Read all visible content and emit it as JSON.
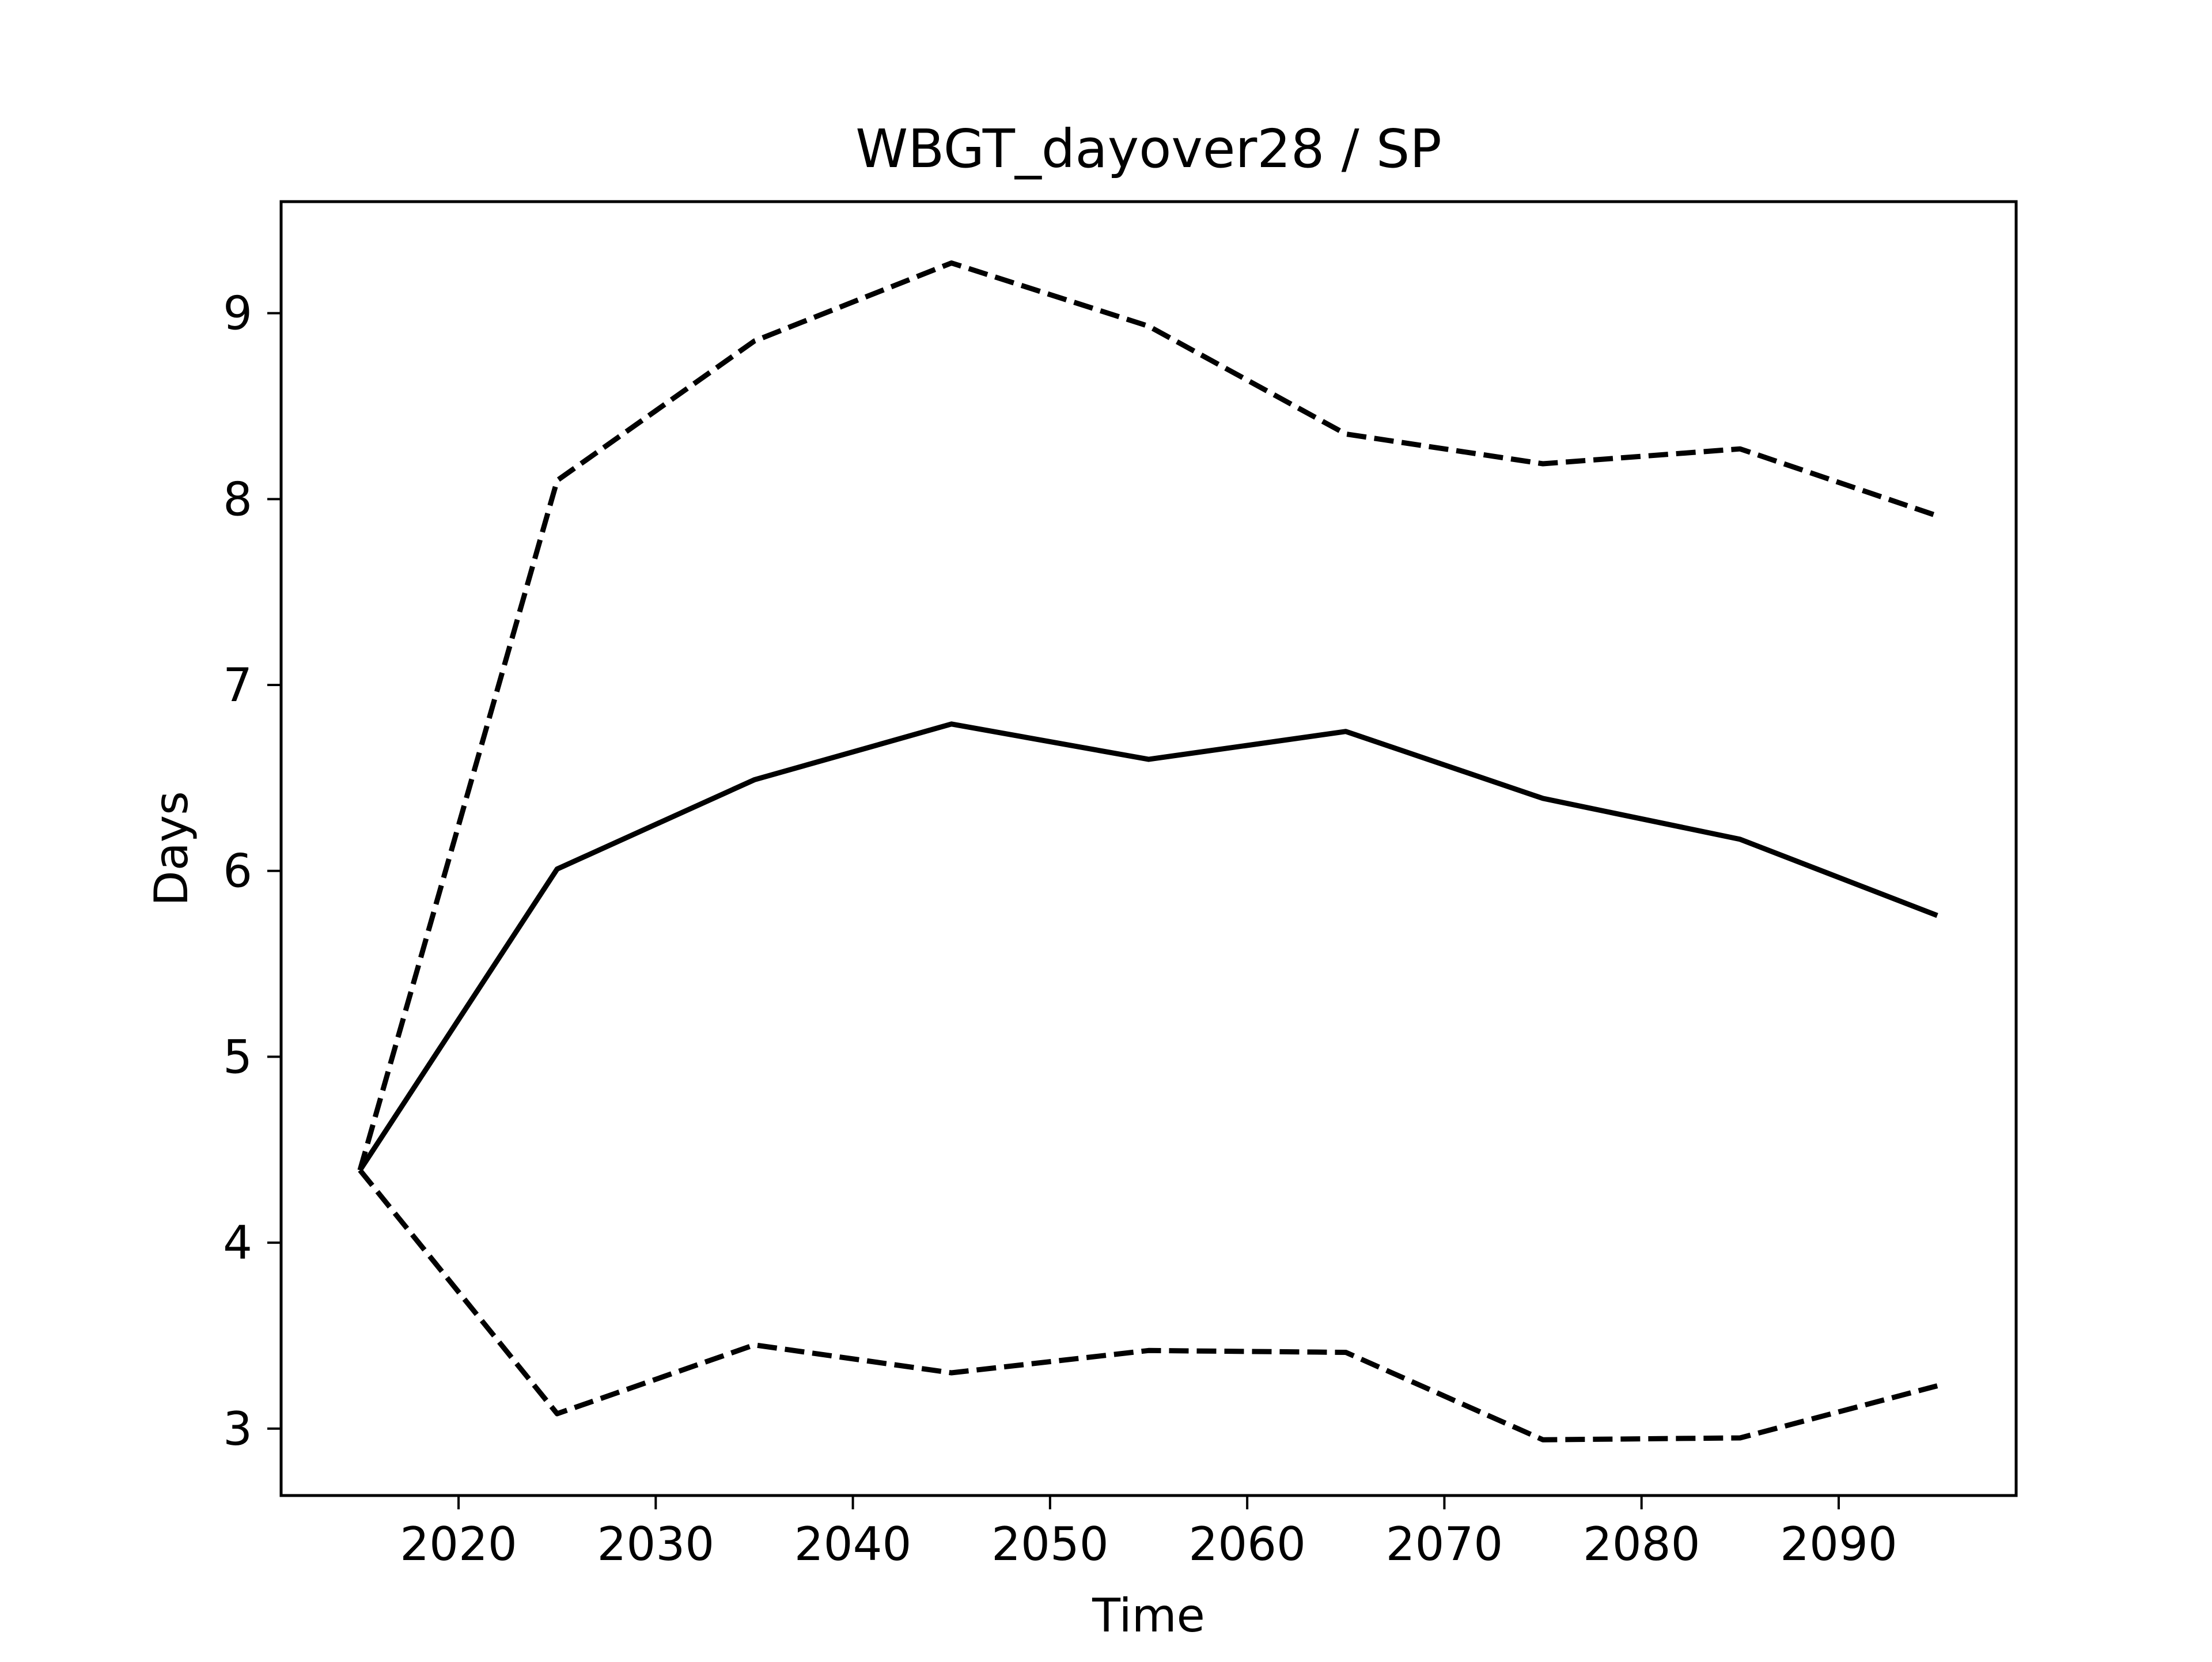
{
  "chart_data": {
    "type": "line",
    "title": "WBGT_dayover28 / SP",
    "xlabel": "Time",
    "ylabel": "Days",
    "xlim": [
      2011,
      2099
    ],
    "ylim": [
      2.64,
      9.6
    ],
    "xticks": [
      2020,
      2030,
      2040,
      2050,
      2060,
      2070,
      2080,
      2090
    ],
    "yticks": [
      3,
      4,
      5,
      6,
      7,
      8,
      9
    ],
    "grid": false,
    "legend": "none",
    "x": [
      2015,
      2025,
      2035,
      2045,
      2055,
      2065,
      2075,
      2085,
      2095
    ],
    "series": [
      {
        "style": "solid",
        "color": "#000000",
        "values": [
          4.39,
          6.01,
          6.49,
          6.79,
          6.6,
          6.75,
          6.39,
          6.17,
          5.76
        ]
      },
      {
        "style": "dashed",
        "color": "#000000",
        "values": [
          4.39,
          8.1,
          8.85,
          9.27,
          8.93,
          8.35,
          8.19,
          8.27,
          7.91
        ]
      },
      {
        "style": "dashed",
        "color": "#000000",
        "values": [
          4.39,
          3.08,
          3.45,
          3.3,
          3.42,
          3.41,
          2.94,
          2.95,
          3.23
        ]
      }
    ]
  }
}
